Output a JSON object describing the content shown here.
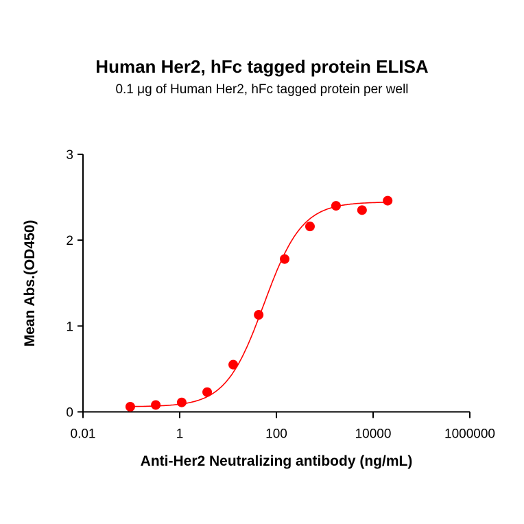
{
  "chart_data": {
    "type": "scatter",
    "title": "Human Her2, hFc tagged protein ELISA",
    "subtitle": "0.1 μg of Human Her2, hFc tagged protein per well",
    "xlabel": "Anti-Her2 Neutralizing antibody (ng/mL)",
    "ylabel": "Mean Abs.(OD450)",
    "xscale": "log",
    "xlim": [
      0.01,
      1000000
    ],
    "ylim": [
      0,
      3
    ],
    "xticks": [
      "0.01",
      "1",
      "100",
      "10000",
      "1000000"
    ],
    "xtick_values": [
      0.01,
      1,
      100,
      10000,
      1000000
    ],
    "yticks": [
      "0",
      "1",
      "2",
      "3"
    ],
    "ytick_values": [
      0,
      1,
      2,
      3
    ],
    "grid": false,
    "legend": "none",
    "fit_curve": "sigmoidal 4PL",
    "color": "#ff0000",
    "x": [
      0.095,
      0.32,
      1.1,
      3.7,
      12.8,
      43,
      148,
      495,
      1710,
      5900,
      20000
    ],
    "y": [
      0.06,
      0.08,
      0.11,
      0.23,
      0.55,
      1.13,
      1.78,
      2.16,
      2.4,
      2.35,
      2.46
    ]
  }
}
